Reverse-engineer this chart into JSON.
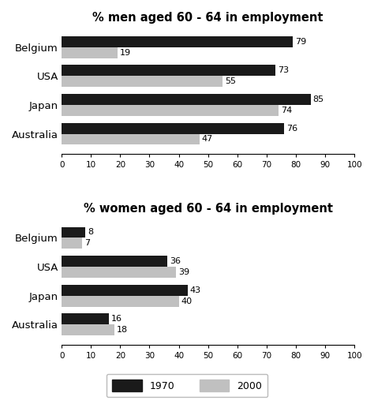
{
  "men_title": "% men aged 60 - 64 in employment",
  "women_title": "% women aged 60 - 64 in employment",
  "countries": [
    "Australia",
    "Japan",
    "USA",
    "Belgium"
  ],
  "men_1970": [
    76,
    85,
    73,
    79
  ],
  "men_2000": [
    47,
    74,
    55,
    19
  ],
  "women_1970": [
    16,
    43,
    36,
    8
  ],
  "women_2000": [
    18,
    40,
    39,
    7
  ],
  "color_1970": "#1a1a1a",
  "color_2000": "#c0c0c0",
  "xticks": [
    0,
    10,
    20,
    30,
    40,
    50,
    60,
    70,
    80,
    90,
    100
  ],
  "legend_labels": [
    "1970",
    "2000"
  ],
  "bar_height": 0.38,
  "label_fontsize": 8,
  "title_fontsize": 10.5
}
